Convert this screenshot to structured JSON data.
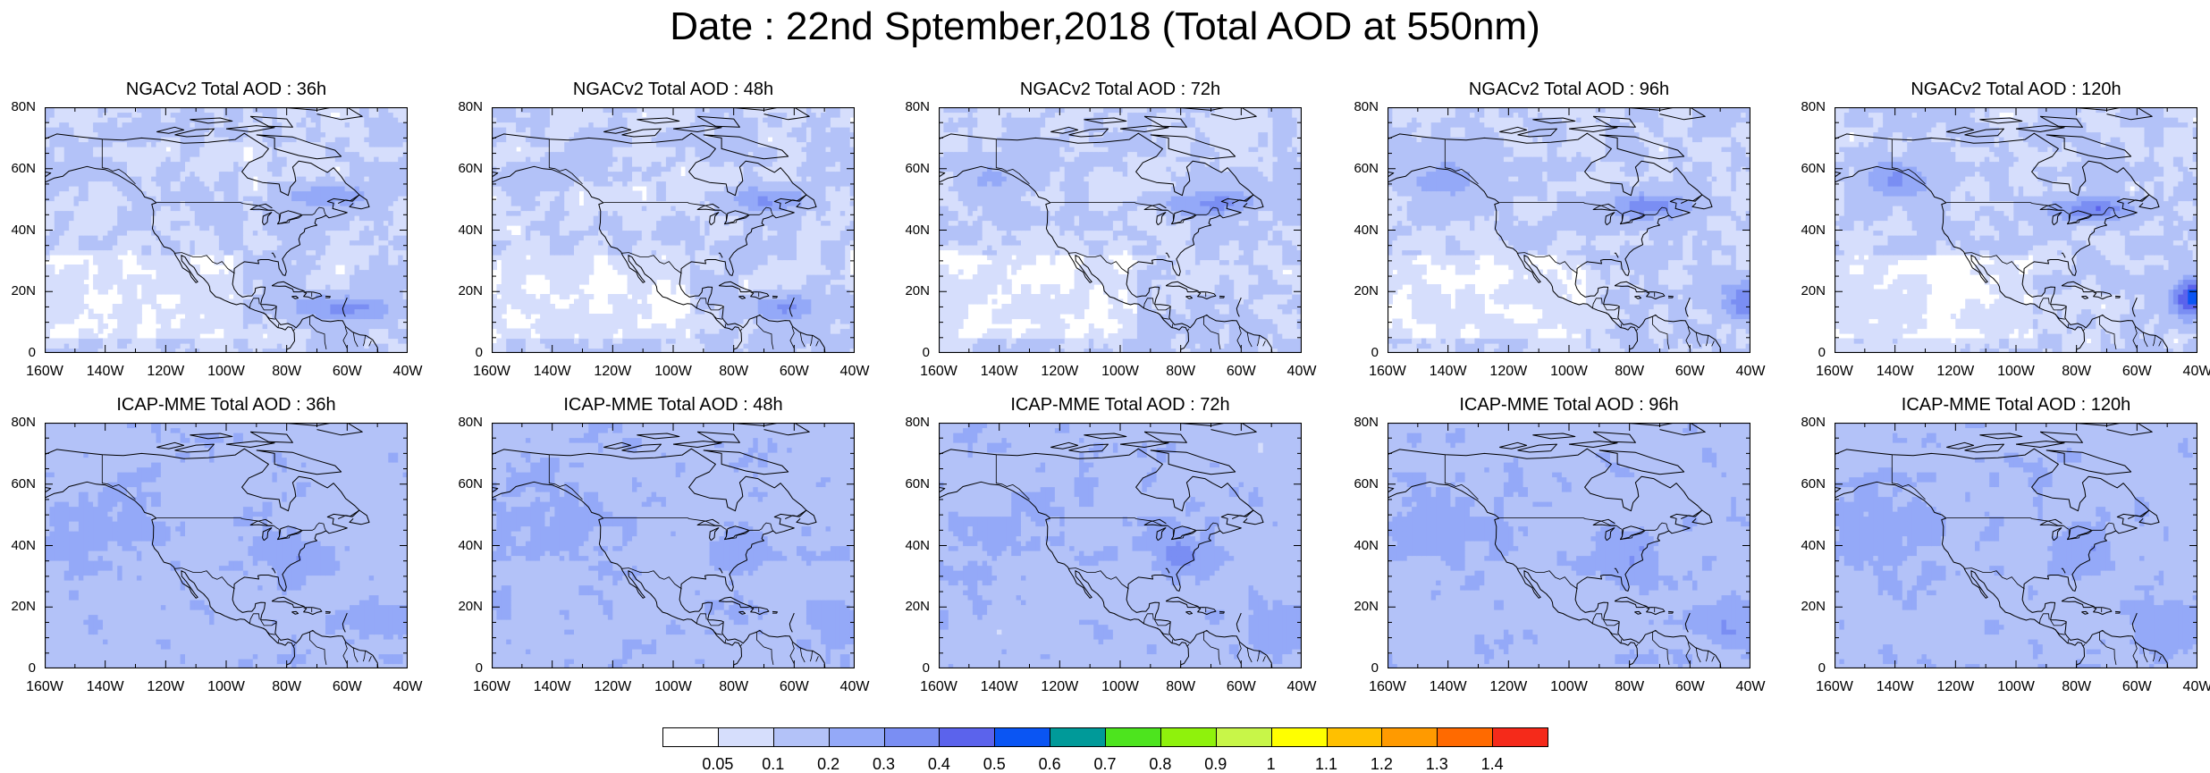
{
  "title": "Date : 22nd Sptember,2018 (Total AOD at 550nm)",
  "axes": {
    "lat_labels": [
      "80N",
      "60N",
      "40N",
      "20N",
      "0"
    ],
    "lon_labels": [
      "160W",
      "140W",
      "120W",
      "100W",
      "80W",
      "60W",
      "40W"
    ]
  },
  "colorbar": {
    "colors": [
      "#ffffff",
      "#d6defc",
      "#b3c2f8",
      "#94a9f8",
      "#7a8ef3",
      "#5b63ec",
      "#0a55f3",
      "#009a99",
      "#4de41e",
      "#8ff20c",
      "#c8f648",
      "#ffff00",
      "#ffc000",
      "#ff9a00",
      "#ff6a00",
      "#f52a1a"
    ],
    "labels": [
      "0.05",
      "0.1",
      "0.2",
      "0.3",
      "0.4",
      "0.5",
      "0.6",
      "0.7",
      "0.8",
      "0.9",
      "1",
      "1.1",
      "1.2",
      "1.3",
      "1.4"
    ]
  },
  "panels": [
    {
      "title": "NGACv2 Total AOD : 36h"
    },
    {
      "title": "NGACv2 Total AOD : 48h"
    },
    {
      "title": "NGACv2 Total AOD : 72h"
    },
    {
      "title": "NGACv2 Total AOD : 96h"
    },
    {
      "title": "NGACv2 Total AOD : 120h"
    },
    {
      "title": "ICAP-MME Total AOD : 36h"
    },
    {
      "title": "ICAP-MME Total AOD : 48h"
    },
    {
      "title": "ICAP-MME Total AOD : 72h"
    },
    {
      "title": "ICAP-MME Total AOD : 96h"
    },
    {
      "title": "ICAP-MME Total AOD : 120h"
    }
  ]
}
